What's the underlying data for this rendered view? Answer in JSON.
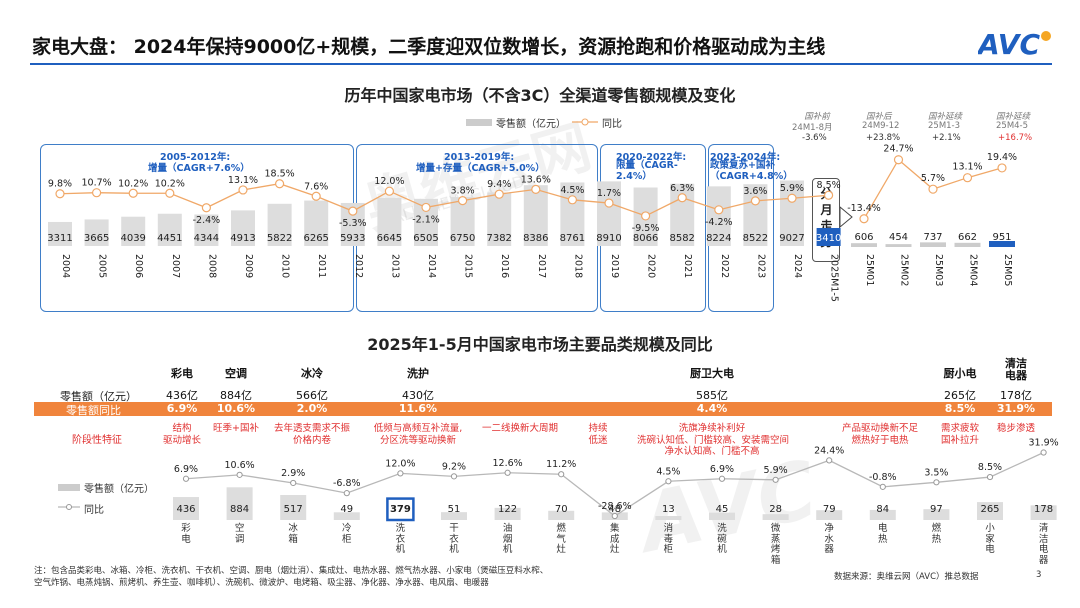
{
  "header": {
    "title": "家电大盘： 2024年保持9000亿+规模，二季度迎双位数增长，资源抢跑和价格驱动成为主线",
    "logo": "AVC",
    "accent_color": "#1f5fbf"
  },
  "watermark": {
    "cn": "奥维云网",
    "en": "ALL VIEW CLOUD",
    "logo": "AVC"
  },
  "chart1": {
    "title": "历年中国家电市场（不含3C）全渠道零售额规模及变化",
    "legend_bar": "零售额（亿元）",
    "legend_line": "同比",
    "side_label": "分月走势",
    "phases": [
      {
        "l1": "2005-2012年:",
        "l2": "增量（CAGR+7.6%）"
      },
      {
        "l1": "2013-2019年:",
        "l2": "增量+存量（CAGR+5.0%）"
      },
      {
        "l1": "2020-2022年:",
        "l2": "限量（CAGR-2.4%）"
      },
      {
        "l1": "2023-2024年:",
        "l2": "政策复苏+国补（CAGR+4.8%）"
      }
    ],
    "annotations": [
      {
        "l1": "国补前",
        "l2": "24M1-8月",
        "l3": "-3.6%"
      },
      {
        "l1": "国补后",
        "l2": "24M9-12",
        "l3": "+23.8%"
      },
      {
        "l1": "国补延续",
        "l2": "25M1-3",
        "l3": "+2.1%"
      },
      {
        "l1": "国补延续",
        "l2": "25M4-5",
        "l3": "+16.7%"
      }
    ]
  },
  "chart2": {
    "title": "2025年1-5月中国家电市场主要品类规模及同比",
    "row_labels": {
      "sales": "零售额（亿元）",
      "growth": "零售额同比",
      "stage": "阶段性特征"
    },
    "groups": [
      {
        "name": "彩电",
        "sales": "436亿",
        "growth": "6.9%",
        "feature": "结构\n驱动增长"
      },
      {
        "name": "空调",
        "sales": "884亿",
        "growth": "10.6%",
        "feature": "旺季+国补"
      },
      {
        "name": "冰冷",
        "sales": "566亿",
        "growth": "2.0%",
        "feature": "去年透支需求不振\n价格内卷"
      },
      {
        "name": "洗护",
        "sales": "430亿",
        "growth": "11.6%",
        "feature": "低频与高频互补流量,\n分区洗等驱动换新"
      },
      {
        "name": "",
        "sales": "",
        "growth": "",
        "feature": "一二线换新大周期"
      },
      {
        "name": "",
        "sales": "",
        "growth": "",
        "feature": "持续\n低迷"
      },
      {
        "name": "厨卫大电",
        "sales": "585亿",
        "growth": "4.4%",
        "feature": "洗旗净续补利好\n洗碗认知低、门槛较高、安装需空间\n净水认知高、门槛不高"
      },
      {
        "name": "",
        "sales": "",
        "growth": "",
        "feature": "产品驱动换新不足\n燃热好于电热"
      },
      {
        "name": "厨小电",
        "sales": "265亿",
        "growth": "8.5%",
        "feature": "需求疲软\n国补拉升"
      },
      {
        "name": "清洁\n电器",
        "sales": "178亿",
        "growth": "31.9%",
        "feature": "稳步渗透"
      }
    ],
    "legend_bar": "零售额（亿元）",
    "legend_line": "同比"
  },
  "chart_data": [
    {
      "type": "bar",
      "title": "历年中国家电市场（不含3C）全渠道零售额规模及变化",
      "categories": [
        "2004",
        "2005",
        "2006",
        "2007",
        "2008",
        "2009",
        "2010",
        "2011",
        "2012",
        "2013",
        "2014",
        "2015",
        "2016",
        "2017",
        "2018",
        "2019",
        "2020",
        "2021",
        "2022",
        "2023",
        "2024",
        "2025M1-5"
      ],
      "series": [
        {
          "name": "零售额（亿元）",
          "values": [
            3311,
            3665,
            4039,
            4451,
            4344,
            4913,
            5822,
            6265,
            5933,
            6645,
            6505,
            6750,
            7382,
            8386,
            8761,
            8910,
            8066,
            8582,
            8224,
            8522,
            9027,
            3410
          ]
        },
        {
          "name": "同比",
          "values": [
            9.8,
            10.7,
            10.2,
            10.2,
            -2.4,
            13.1,
            18.5,
            7.6,
            -5.3,
            12.0,
            -2.1,
            3.8,
            9.4,
            13.6,
            4.5,
            1.7,
            -9.5,
            6.3,
            -4.2,
            3.6,
            5.9,
            8.5
          ]
        }
      ],
      "labels": [
        "9.8%",
        "10.7%",
        "10.2%",
        "10.2%",
        "-2.4%",
        "13.1%",
        "18.5%",
        "7.6%",
        "-5.3%",
        "12.0%",
        "-2.1%",
        "3.8%",
        "9.4%",
        "13.6%",
        "4.5%",
        "1.7%",
        "-9.5%",
        "6.3%",
        "-4.2%",
        "3.6%",
        "5.9%",
        "8.5%"
      ]
    },
    {
      "type": "bar",
      "title": "分月走势",
      "categories": [
        "25M01",
        "25M02",
        "25M03",
        "25M04",
        "25M05"
      ],
      "series": [
        {
          "name": "零售额（亿元）",
          "values": [
            606,
            454,
            737,
            662,
            951
          ]
        },
        {
          "name": "同比",
          "values": [
            -13.4,
            24.7,
            5.7,
            13.1,
            19.4
          ]
        }
      ],
      "labels": [
        "-13.4%",
        "24.7%",
        "5.7%",
        "13.1%",
        "19.4%"
      ]
    },
    {
      "type": "bar",
      "title": "2025年1-5月中国家电市场主要品类规模及同比",
      "categories": [
        "彩电",
        "空调",
        "冰箱",
        "冷柜",
        "洗衣机",
        "干衣机",
        "油烟机",
        "燃气灶",
        "集成灶",
        "消毒柜",
        "洗碗机",
        "微蒸烤",
        "净水器",
        "电热",
        "燃热",
        "小家电",
        "清洁电器"
      ],
      "series": [
        {
          "name": "零售额（亿元）",
          "values": [
            436,
            884,
            517,
            49,
            379,
            51,
            122,
            70,
            48,
            13,
            45,
            28,
            79,
            84,
            97,
            265,
            178
          ]
        },
        {
          "name": "同比",
          "values": [
            6.9,
            10.6,
            2.9,
            -6.8,
            12.0,
            9.2,
            12.6,
            11.2,
            -28.6,
            4.5,
            6.9,
            5.9,
            24.4,
            -0.8,
            3.5,
            8.5,
            31.9
          ]
        }
      ],
      "labels": [
        "6.9%",
        "10.6%",
        "2.9%",
        "-6.8%",
        "12.0%",
        "9.2%",
        "12.6%",
        "11.2%",
        "-28.6%",
        "4.5%",
        "6.9%",
        "5.9%",
        "24.4%",
        "-0.8%",
        "3.5%",
        "8.5%",
        "31.9%"
      ],
      "xlabel_display": [
        "彩电",
        "空调",
        "冰箱",
        "冷柜",
        "洗衣机",
        "干衣机",
        "油烟机",
        "燃气灶",
        "集成灶",
        "消毒柜",
        "洗碗机",
        "微蒸烤箱",
        "净水器",
        "电热",
        "燃热",
        "小家电",
        "清洁电器"
      ]
    }
  ],
  "footer": {
    "note_line1": "注：包含品类彩电、冰箱、冷柜、洗衣机、干衣机、空调、厨电（烟灶消）、集成灶、电热水器、燃气热水器、小家电（煲磁压豆料水榨、",
    "note_line2": "空气炸锅、电蒸炖锅、煎烤机、养生壶、咖啡机）、洗碗机、微波炉、电烤箱、吸尘器、净化器、净水器、电风扇、电暖器",
    "source": "数据来源：奥维云网（AVC）推总数据",
    "page_number": "3"
  },
  "colors": {
    "bar": "#dddddd",
    "highlight_bar": "#1f5fbf",
    "line": "#f0a868",
    "line2": "#b8b8b8",
    "box": "#3f7ec8",
    "orange_band": "#f0843c",
    "red_text": "#e03030",
    "header_line": "#1f5fbf"
  }
}
